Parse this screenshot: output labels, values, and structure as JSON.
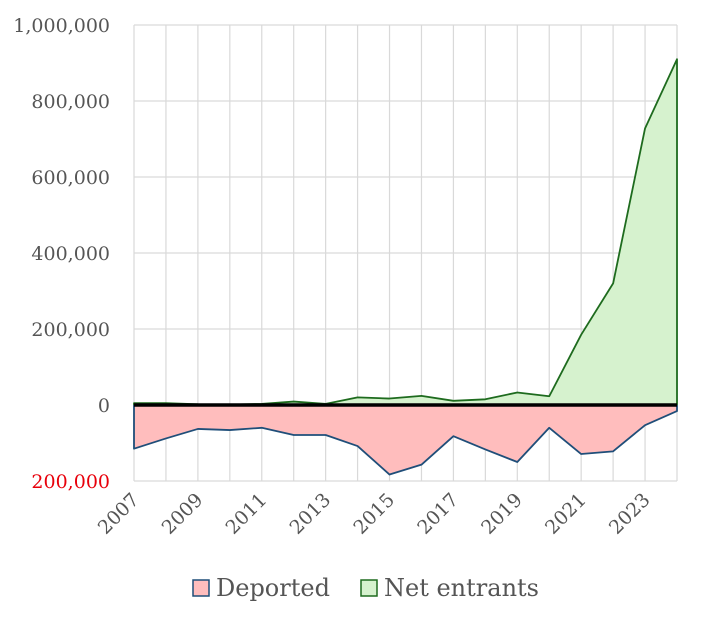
{
  "chart_data": {
    "type": "area",
    "title": "",
    "xlabel": "",
    "ylabel": "",
    "x": [
      2007,
      2008,
      2009,
      2010,
      2011,
      2012,
      2013,
      2014,
      2015,
      2016,
      2017,
      2018,
      2019,
      2020,
      2021,
      2022,
      2023,
      2024
    ],
    "x_ticks": [
      2007,
      2009,
      2011,
      2013,
      2015,
      2017,
      2019,
      2021,
      2023
    ],
    "ylim": [
      -200000,
      1000000
    ],
    "y_ticks": [
      {
        "value": 1000000,
        "label": "1,000,000"
      },
      {
        "value": 800000,
        "label": "800,000"
      },
      {
        "value": 600000,
        "label": "600,000"
      },
      {
        "value": 400000,
        "label": "400,000"
      },
      {
        "value": 200000,
        "label": "200,000"
      },
      {
        "value": 0,
        "label": "0"
      },
      {
        "value": -200000,
        "label": "200,000",
        "color": "#e8000b"
      }
    ],
    "grid": true,
    "legend_position": "bottom",
    "series": [
      {
        "name": "Deported",
        "fill": "#ffbdbd",
        "stroke": "#1f4e79",
        "values": [
          -115000,
          -88000,
          -63000,
          -66000,
          -60000,
          -79000,
          -79000,
          -108000,
          -183000,
          -157000,
          -82000,
          -117000,
          -150000,
          -60000,
          -129000,
          -122000,
          -53000,
          -16000
        ]
      },
      {
        "name": "Net entrants",
        "fill": "#d6f2ce",
        "stroke": "#1e6b1e",
        "values": [
          5000,
          5000,
          2000,
          1000,
          3000,
          9000,
          3000,
          20000,
          17000,
          24000,
          11000,
          15000,
          33000,
          23000,
          185000,
          320000,
          728000,
          910000
        ]
      }
    ]
  }
}
